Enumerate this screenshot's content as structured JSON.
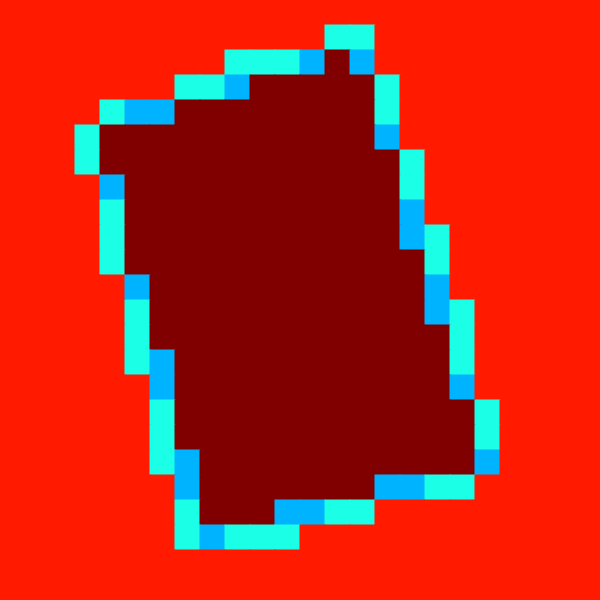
{
  "chart_data": {
    "type": "heatmap",
    "tick_labels": false,
    "zlim": [
      0,
      1
    ],
    "cells": [
      [
        0.85,
        0.85,
        0.85,
        0.85,
        0.85,
        0.85,
        0.85,
        0.85,
        0.85,
        0.85,
        0.85,
        0.85,
        0.85,
        0.85,
        0.85,
        0.85,
        0.85,
        0.85,
        0.85,
        0.85,
        0.85,
        0.85,
        0.85,
        0.85
      ],
      [
        0.85,
        0.85,
        0.85,
        0.85,
        0.85,
        0.85,
        0.85,
        0.85,
        0.85,
        0.85,
        0.85,
        0.85,
        0.85,
        0.4,
        0.4,
        0.85,
        0.85,
        0.85,
        0.85,
        0.85,
        0.85,
        0.85,
        0.85,
        0.85
      ],
      [
        0.85,
        0.85,
        0.85,
        0.85,
        0.85,
        0.85,
        0.85,
        0.85,
        0.85,
        0.4,
        0.4,
        0.4,
        0.3,
        1,
        0.3,
        0.85,
        0.85,
        0.85,
        0.85,
        0.85,
        0.85,
        0.85,
        0.85,
        0.85
      ],
      [
        0.85,
        0.85,
        0.85,
        0.85,
        0.85,
        0.85,
        0.85,
        0.4,
        0.4,
        0.3,
        1,
        1,
        1,
        1,
        1,
        0.4,
        0.85,
        0.85,
        0.85,
        0.85,
        0.85,
        0.85,
        0.85,
        0.85
      ],
      [
        0.85,
        0.85,
        0.85,
        0.85,
        0.4,
        0.3,
        0.3,
        1,
        1,
        1,
        1,
        1,
        1,
        1,
        1,
        0.4,
        0.85,
        0.85,
        0.85,
        0.85,
        0.85,
        0.85,
        0.85,
        0.85
      ],
      [
        0.85,
        0.85,
        0.85,
        0.4,
        1,
        1,
        1,
        1,
        1,
        1,
        1,
        1,
        1,
        1,
        1,
        0.3,
        0.85,
        0.85,
        0.85,
        0.85,
        0.85,
        0.85,
        0.85,
        0.85
      ],
      [
        0.85,
        0.85,
        0.85,
        0.4,
        1,
        1,
        1,
        1,
        1,
        1,
        1,
        1,
        1,
        1,
        1,
        1,
        0.4,
        0.85,
        0.85,
        0.85,
        0.85,
        0.85,
        0.85,
        0.85
      ],
      [
        0.85,
        0.85,
        0.85,
        0.85,
        0.3,
        1,
        1,
        1,
        1,
        1,
        1,
        1,
        1,
        1,
        1,
        1,
        0.4,
        0.85,
        0.85,
        0.85,
        0.85,
        0.85,
        0.85,
        0.85
      ],
      [
        0.85,
        0.85,
        0.85,
        0.85,
        0.4,
        1,
        1,
        1,
        1,
        1,
        1,
        1,
        1,
        1,
        1,
        1,
        0.3,
        0.85,
        0.85,
        0.85,
        0.85,
        0.85,
        0.85,
        0.85
      ],
      [
        0.85,
        0.85,
        0.85,
        0.85,
        0.4,
        1,
        1,
        1,
        1,
        1,
        1,
        1,
        1,
        1,
        1,
        1,
        0.3,
        0.4,
        0.85,
        0.85,
        0.85,
        0.85,
        0.85,
        0.85
      ],
      [
        0.85,
        0.85,
        0.85,
        0.85,
        0.4,
        1,
        1,
        1,
        1,
        1,
        1,
        1,
        1,
        1,
        1,
        1,
        1,
        0.4,
        0.85,
        0.85,
        0.85,
        0.85,
        0.85,
        0.85
      ],
      [
        0.85,
        0.85,
        0.85,
        0.85,
        0.85,
        0.3,
        1,
        1,
        1,
        1,
        1,
        1,
        1,
        1,
        1,
        1,
        1,
        0.3,
        0.85,
        0.85,
        0.85,
        0.85,
        0.85,
        0.85
      ],
      [
        0.85,
        0.85,
        0.85,
        0.85,
        0.85,
        0.4,
        1,
        1,
        1,
        1,
        1,
        1,
        1,
        1,
        1,
        1,
        1,
        0.3,
        0.4,
        0.85,
        0.85,
        0.85,
        0.85,
        0.85
      ],
      [
        0.85,
        0.85,
        0.85,
        0.85,
        0.85,
        0.4,
        1,
        1,
        1,
        1,
        1,
        1,
        1,
        1,
        1,
        1,
        1,
        1,
        0.4,
        0.85,
        0.85,
        0.85,
        0.85,
        0.85
      ],
      [
        0.85,
        0.85,
        0.85,
        0.85,
        0.85,
        0.4,
        0.3,
        1,
        1,
        1,
        1,
        1,
        1,
        1,
        1,
        1,
        1,
        1,
        0.4,
        0.85,
        0.85,
        0.85,
        0.85,
        0.85
      ],
      [
        0.85,
        0.85,
        0.85,
        0.85,
        0.85,
        0.85,
        0.3,
        1,
        1,
        1,
        1,
        1,
        1,
        1,
        1,
        1,
        1,
        1,
        0.3,
        0.85,
        0.85,
        0.85,
        0.85,
        0.85
      ],
      [
        0.85,
        0.85,
        0.85,
        0.85,
        0.85,
        0.85,
        0.4,
        1,
        1,
        1,
        1,
        1,
        1,
        1,
        1,
        1,
        1,
        1,
        1,
        0.4,
        0.85,
        0.85,
        0.85,
        0.85
      ],
      [
        0.85,
        0.85,
        0.85,
        0.85,
        0.85,
        0.85,
        0.4,
        1,
        1,
        1,
        1,
        1,
        1,
        1,
        1,
        1,
        1,
        1,
        1,
        0.4,
        0.85,
        0.85,
        0.85,
        0.85
      ],
      [
        0.85,
        0.85,
        0.85,
        0.85,
        0.85,
        0.85,
        0.4,
        0.3,
        1,
        1,
        1,
        1,
        1,
        1,
        1,
        1,
        1,
        1,
        1,
        0.3,
        0.85,
        0.85,
        0.85,
        0.85
      ],
      [
        0.85,
        0.85,
        0.85,
        0.85,
        0.85,
        0.85,
        0.85,
        0.3,
        1,
        1,
        1,
        1,
        1,
        1,
        1,
        0.3,
        0.3,
        0.4,
        0.4,
        0.85,
        0.85,
        0.85,
        0.85,
        0.85
      ],
      [
        0.85,
        0.85,
        0.85,
        0.85,
        0.85,
        0.85,
        0.85,
        0.4,
        1,
        1,
        1,
        0.3,
        0.3,
        0.4,
        0.4,
        0.85,
        0.85,
        0.85,
        0.85,
        0.85,
        0.85,
        0.85,
        0.85,
        0.85
      ],
      [
        0.85,
        0.85,
        0.85,
        0.85,
        0.85,
        0.85,
        0.85,
        0.4,
        0.3,
        0.4,
        0.4,
        0.4,
        0.85,
        0.85,
        0.85,
        0.85,
        0.85,
        0.85,
        0.85,
        0.85,
        0.85,
        0.85,
        0.85,
        0.85
      ],
      [
        0.85,
        0.85,
        0.85,
        0.85,
        0.85,
        0.85,
        0.85,
        0.85,
        0.85,
        0.85,
        0.85,
        0.85,
        0.85,
        0.85,
        0.85,
        0.85,
        0.85,
        0.85,
        0.85,
        0.85,
        0.85,
        0.85,
        0.85,
        0.85
      ],
      [
        0.85,
        0.85,
        0.85,
        0.85,
        0.85,
        0.85,
        0.85,
        0.85,
        0.85,
        0.85,
        0.85,
        0.85,
        0.85,
        0.85,
        0.85,
        0.85,
        0.85,
        0.85,
        0.85,
        0.85,
        0.85,
        0.85,
        0.85,
        0.85
      ]
    ]
  }
}
